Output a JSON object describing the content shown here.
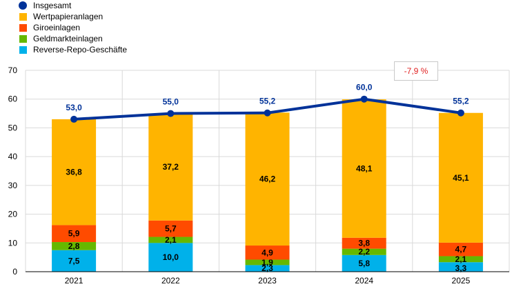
{
  "chart_data": {
    "type": "bar",
    "stacked": true,
    "categories": [
      "2021",
      "2022",
      "2023",
      "2024",
      "2025"
    ],
    "ylim": [
      0,
      70
    ],
    "yticks": [
      0,
      10,
      20,
      30,
      40,
      50,
      60,
      70
    ],
    "grid": true,
    "legend_position": "top-left",
    "series": [
      {
        "name": "Reverse-Repo-Geschäfte",
        "color": "#00b1ea",
        "values": [
          7.5,
          10.0,
          2.3,
          5.8,
          3.3
        ],
        "labels": [
          "7,5",
          "10,0",
          "2,3",
          "5,8",
          "3,3"
        ]
      },
      {
        "name": "Geldmarkteinlagen",
        "color": "#65b800",
        "values": [
          2.8,
          2.1,
          1.9,
          2.2,
          2.1
        ],
        "labels": [
          "2,8",
          "2,1",
          "1,9",
          "2,2",
          "2,1"
        ]
      },
      {
        "name": "Giroeinlagen",
        "color": "#ff4b00",
        "values": [
          5.9,
          5.7,
          4.9,
          3.8,
          4.7
        ],
        "labels": [
          "5,9",
          "5,7",
          "4,9",
          "3,8",
          "4,7"
        ]
      },
      {
        "name": "Wertpapieranlagen",
        "color": "#ffb400",
        "values": [
          36.8,
          37.2,
          46.2,
          48.1,
          45.1
        ],
        "labels": [
          "36,8",
          "37,2",
          "46,2",
          "48,1",
          "45,1"
        ]
      }
    ],
    "line": {
      "name": "Insgesamt",
      "color": "#003299",
      "values": [
        53.0,
        55.0,
        55.2,
        60.0,
        55.2
      ],
      "labels": [
        "53,0",
        "55,0",
        "55,2",
        "60,0",
        "55,2"
      ]
    },
    "annotation": {
      "text": "-7,9 %",
      "color": "#e02020"
    }
  },
  "legend": [
    {
      "label": "Insgesamt",
      "color": "#003299",
      "shape": "dot"
    },
    {
      "label": "Wertpapieranlagen",
      "color": "#ffb400",
      "shape": "square"
    },
    {
      "label": "Giroeinlagen",
      "color": "#ff4b00",
      "shape": "square"
    },
    {
      "label": "Geldmarkteinlagen",
      "color": "#65b800",
      "shape": "square"
    },
    {
      "label": "Reverse-Repo-Geschäfte",
      "color": "#00b1ea",
      "shape": "square"
    }
  ]
}
